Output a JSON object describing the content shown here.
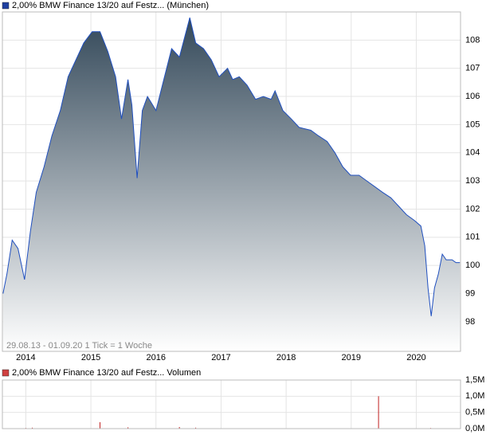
{
  "chart_data": [
    {
      "type": "area",
      "title": "2,00% BMW Finance 13/20 auf Festz... (München)",
      "annotation": "29.08.13 - 01.09.20   1 Tick = 1 Woche",
      "legend_color": "#1f3f9f",
      "color": "#1f4fbf",
      "x": [
        2013.65,
        2013.71,
        2013.79,
        2013.88,
        2013.98,
        2014.07,
        2014.16,
        2014.28,
        2014.4,
        2014.53,
        2014.65,
        2014.77,
        2014.89,
        2015.02,
        2015.14,
        2015.26,
        2015.38,
        2015.47,
        2015.57,
        2015.63,
        2015.71,
        2015.79,
        2015.87,
        2016.0,
        2016.12,
        2016.24,
        2016.36,
        2016.52,
        2016.61,
        2016.73,
        2016.85,
        2016.97,
        2017.1,
        2017.18,
        2017.28,
        2017.4,
        2017.53,
        2017.65,
        2017.77,
        2017.83,
        2017.95,
        2018.08,
        2018.2,
        2018.38,
        2018.5,
        2018.63,
        2018.75,
        2018.87,
        2018.99,
        2019.12,
        2019.24,
        2019.36,
        2019.48,
        2019.61,
        2019.73,
        2019.85,
        2019.97,
        2020.07,
        2020.13,
        2020.18,
        2020.23,
        2020.28,
        2020.34,
        2020.4,
        2020.46,
        2020.55,
        2020.61,
        2020.67
      ],
      "values": [
        99.0,
        99.7,
        100.9,
        100.6,
        99.5,
        101.2,
        102.6,
        103.5,
        104.6,
        105.5,
        106.7,
        107.3,
        107.9,
        108.3,
        108.3,
        107.6,
        106.7,
        105.2,
        106.6,
        105.7,
        103.1,
        105.5,
        106.0,
        105.5,
        106.6,
        107.7,
        107.4,
        108.8,
        107.9,
        107.7,
        107.3,
        106.7,
        107.0,
        106.6,
        106.7,
        106.4,
        105.9,
        106.0,
        105.9,
        106.2,
        105.5,
        105.2,
        104.9,
        104.8,
        104.6,
        104.4,
        104.0,
        103.5,
        103.2,
        103.2,
        103.0,
        102.8,
        102.6,
        102.4,
        102.1,
        101.8,
        101.6,
        101.4,
        100.7,
        99.2,
        98.2,
        99.2,
        99.7,
        100.4,
        100.2,
        100.2,
        100.1,
        100.1
      ],
      "xlim": [
        2013.64,
        2020.68
      ],
      "xticks": [
        2014,
        2015,
        2016,
        2017,
        2018,
        2019,
        2020
      ],
      "ylim": [
        96.95,
        109.0
      ],
      "yticks": [
        98,
        99,
        100,
        101,
        102,
        103,
        104,
        105,
        106,
        107,
        108
      ],
      "grid": true
    },
    {
      "type": "bar",
      "title": "2,00% BMW Finance 13/20 auf Festz... Volumen",
      "legend_color": "#d04040",
      "color": "#c02020",
      "x": [
        2014.0,
        2014.1,
        2015.14,
        2015.57,
        2016.36,
        2016.61,
        2019.42,
        2020.22
      ],
      "values": [
        20000,
        30000,
        200000,
        40000,
        50000,
        30000,
        1000000,
        20000
      ],
      "xlim": [
        2013.64,
        2020.68
      ],
      "xticks": [
        2014,
        2015,
        2016,
        2017,
        2018,
        2019,
        2020
      ],
      "ylim": [
        0,
        1500000
      ],
      "yticks": [
        {
          "value": 0,
          "label": "0,0M"
        },
        {
          "value": 500000,
          "label": "0,5M"
        },
        {
          "value": 1000000,
          "label": "1,0M"
        },
        {
          "value": 1500000,
          "label": "1,5M"
        }
      ],
      "grid": true
    }
  ]
}
